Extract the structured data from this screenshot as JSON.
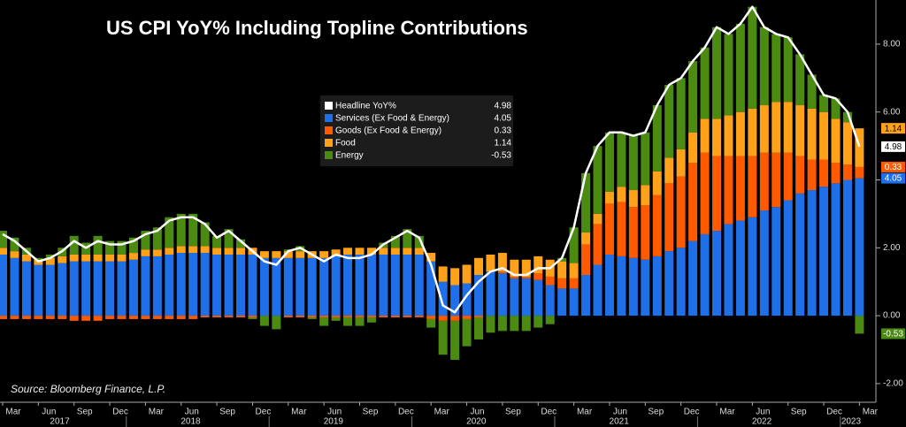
{
  "chart_data": {
    "type": "bar",
    "stacked": true,
    "title": "US CPI YoY% Including Topline Contributions",
    "source": "Source: Bloomberg Finance, L.P.",
    "categories": [
      "Mar",
      null,
      null,
      "Jun",
      null,
      null,
      "Sep",
      null,
      null,
      "Dec",
      null,
      null,
      "Mar",
      null,
      null,
      "Jun",
      null,
      null,
      "Sep",
      null,
      null,
      "Dec",
      null,
      null,
      "Mar",
      null,
      null,
      "Jun",
      null,
      null,
      "Sep",
      null,
      null,
      "Dec",
      null,
      null,
      "Mar",
      null,
      null,
      "Jun",
      null,
      null,
      "Sep",
      null,
      null,
      "Dec",
      null,
      null,
      "Mar",
      null,
      null,
      "Jun",
      null,
      null,
      "Sep",
      null,
      null,
      "Dec",
      null,
      null,
      "Mar",
      null,
      null,
      "Jun",
      null,
      null,
      "Sep",
      null,
      null,
      "Dec",
      null,
      null,
      "Mar"
    ],
    "years": [
      "2017",
      "2018",
      "2019",
      "2020",
      "2021",
      "2022",
      "2023"
    ],
    "series": [
      {
        "name": "Headline YoY%",
        "type": "line",
        "color": "#ffffff",
        "values": [
          2.4,
          2.2,
          1.9,
          1.6,
          1.7,
          1.9,
          2.2,
          2.0,
          2.2,
          2.1,
          2.1,
          2.2,
          2.4,
          2.5,
          2.8,
          2.9,
          2.9,
          2.7,
          2.3,
          2.5,
          2.2,
          1.9,
          1.6,
          1.5,
          1.9,
          2.0,
          1.8,
          1.6,
          1.8,
          1.7,
          1.7,
          1.8,
          2.1,
          2.3,
          2.5,
          2.3,
          1.5,
          0.3,
          0.1,
          0.6,
          1.0,
          1.3,
          1.4,
          1.2,
          1.2,
          1.4,
          1.4,
          1.7,
          2.6,
          4.2,
          5.0,
          5.4,
          5.4,
          5.3,
          5.4,
          6.2,
          6.8,
          7.0,
          7.5,
          7.9,
          8.5,
          8.3,
          8.6,
          9.1,
          8.5,
          8.3,
          8.2,
          7.7,
          7.1,
          6.5,
          6.4,
          6.0,
          4.98
        ]
      },
      {
        "name": "Services (Ex Food & Energy)",
        "type": "bar",
        "color": "#1f6fe8",
        "values": [
          1.8,
          1.7,
          1.6,
          1.5,
          1.5,
          1.55,
          1.6,
          1.6,
          1.6,
          1.6,
          1.6,
          1.65,
          1.75,
          1.75,
          1.8,
          1.85,
          1.85,
          1.85,
          1.8,
          1.8,
          1.8,
          1.8,
          1.7,
          1.7,
          1.7,
          1.7,
          1.7,
          1.7,
          1.75,
          1.8,
          1.8,
          1.8,
          1.8,
          1.8,
          1.8,
          1.8,
          1.6,
          1.0,
          0.9,
          0.95,
          1.2,
          1.3,
          1.25,
          1.1,
          1.1,
          1.05,
          0.9,
          0.8,
          0.8,
          1.2,
          1.5,
          1.8,
          1.75,
          1.7,
          1.65,
          1.75,
          1.9,
          2.0,
          2.2,
          2.4,
          2.5,
          2.7,
          2.8,
          2.9,
          3.1,
          3.2,
          3.4,
          3.6,
          3.7,
          3.8,
          3.9,
          4.0,
          4.05
        ]
      },
      {
        "name": "Goods (Ex Food & Energy)",
        "type": "bar",
        "color": "#ff5a00",
        "values": [
          -0.1,
          -0.1,
          -0.1,
          -0.1,
          -0.1,
          -0.1,
          -0.15,
          -0.15,
          -0.15,
          -0.1,
          -0.1,
          -0.1,
          -0.1,
          -0.1,
          -0.1,
          -0.1,
          -0.1,
          -0.05,
          -0.05,
          -0.05,
          -0.05,
          -0.05,
          0.0,
          0.0,
          -0.05,
          -0.05,
          -0.05,
          -0.05,
          -0.05,
          -0.05,
          -0.05,
          -0.05,
          -0.05,
          -0.05,
          -0.05,
          -0.05,
          -0.1,
          -0.15,
          -0.15,
          -0.1,
          -0.05,
          0.0,
          0.05,
          0.05,
          0.05,
          0.2,
          0.25,
          0.3,
          0.3,
          0.9,
          1.2,
          1.5,
          1.6,
          1.5,
          1.6,
          1.8,
          2.0,
          2.1,
          2.3,
          2.4,
          2.2,
          2.0,
          1.9,
          1.8,
          1.7,
          1.6,
          1.4,
          1.1,
          0.9,
          0.8,
          0.6,
          0.45,
          0.33
        ]
      },
      {
        "name": "Food",
        "type": "bar",
        "color": "#ffa21a",
        "values": [
          0.2,
          0.2,
          0.2,
          0.15,
          0.2,
          0.2,
          0.2,
          0.2,
          0.2,
          0.2,
          0.2,
          0.2,
          0.2,
          0.2,
          0.2,
          0.2,
          0.2,
          0.2,
          0.2,
          0.2,
          0.2,
          0.2,
          0.2,
          0.2,
          0.2,
          0.2,
          0.2,
          0.2,
          0.2,
          0.2,
          0.2,
          0.2,
          0.2,
          0.2,
          0.2,
          0.2,
          0.25,
          0.45,
          0.5,
          0.55,
          0.5,
          0.5,
          0.55,
          0.5,
          0.5,
          0.5,
          0.5,
          0.5,
          0.45,
          0.35,
          0.3,
          0.35,
          0.45,
          0.5,
          0.6,
          0.7,
          0.75,
          0.8,
          0.9,
          1.0,
          1.1,
          1.2,
          1.3,
          1.4,
          1.4,
          1.5,
          1.5,
          1.5,
          1.5,
          1.4,
          1.3,
          1.25,
          1.14
        ]
      },
      {
        "name": "Energy",
        "type": "bar",
        "color": "#4b8b12",
        "values": [
          0.5,
          0.4,
          0.2,
          0.05,
          0.1,
          0.25,
          0.55,
          0.35,
          0.55,
          0.4,
          0.4,
          0.45,
          0.55,
          0.65,
          0.9,
          0.95,
          0.95,
          0.7,
          0.35,
          0.55,
          0.25,
          -0.05,
          -0.3,
          -0.4,
          0.05,
          0.15,
          -0.05,
          -0.25,
          -0.1,
          -0.25,
          -0.25,
          -0.15,
          0.15,
          0.35,
          0.55,
          0.35,
          -0.25,
          -1.0,
          -1.15,
          -0.8,
          -0.65,
          -0.5,
          -0.45,
          -0.45,
          -0.45,
          -0.35,
          -0.25,
          0.1,
          1.05,
          1.75,
          2.0,
          1.75,
          1.6,
          1.6,
          1.55,
          1.95,
          2.15,
          2.1,
          2.1,
          2.1,
          2.7,
          2.4,
          2.6,
          3.0,
          2.3,
          2.0,
          1.9,
          1.5,
          1.0,
          0.5,
          0.6,
          0.3,
          -0.53
        ]
      }
    ],
    "ylim": [
      -2.55,
      9.3
    ],
    "yticks": [
      {
        "value": -2,
        "label": "-2.00"
      },
      {
        "value": 0,
        "label": "0.00"
      },
      {
        "value": 2,
        "label": "2.00"
      },
      {
        "value": 4,
        "label": "4.00"
      },
      {
        "value": 6,
        "label": "6.00"
      },
      {
        "value": 8,
        "label": "8.00"
      }
    ],
    "legend": "top-center"
  }
}
